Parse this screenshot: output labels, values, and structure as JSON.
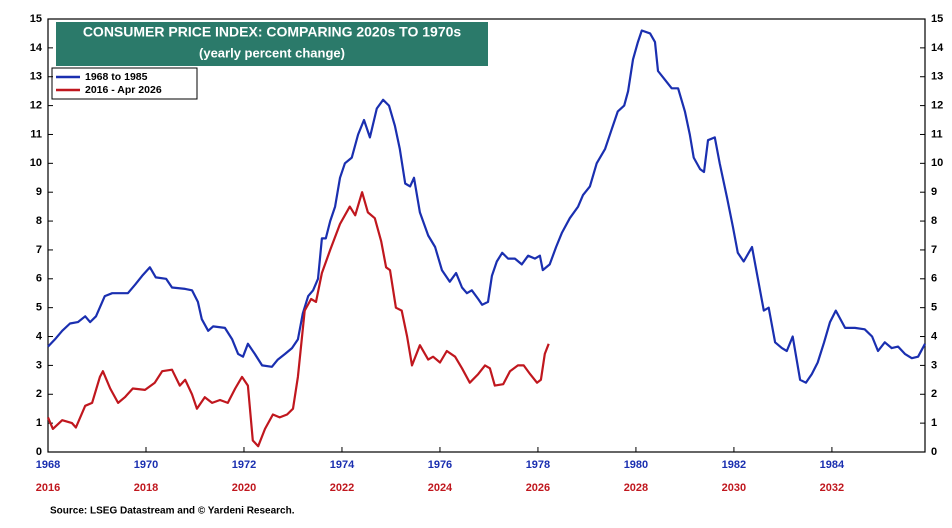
{
  "chart_data": {
    "type": "line",
    "title": "CONSUMER PRICE INDEX: COMPARING 2020s TO 1970s",
    "subtitle": "(yearly percent change)",
    "source": "Source: LSEG Datastream and © Yardeni Research.",
    "title_box_color": "#2b7a6a",
    "xlim": [
      1968,
      1985.9
    ],
    "xticks": [
      1968,
      1970,
      1972,
      1974,
      1976,
      1978,
      1980,
      1982,
      1984
    ],
    "xtick_color": "#1a2fb0",
    "x2lim": [
      2016,
      2033.9
    ],
    "x2ticks": [
      2016,
      2018,
      2020,
      2022,
      2024,
      2026,
      2028,
      2030,
      2032
    ],
    "x2tick_color": "#c0171e",
    "ylim": [
      0,
      15
    ],
    "yticks": [
      0,
      1,
      2,
      3,
      4,
      5,
      6,
      7,
      8,
      9,
      10,
      11,
      12,
      13,
      14,
      15
    ],
    "grid": false,
    "legend": "upper left",
    "series": [
      {
        "name": "1968 to 1985",
        "color": "#1a2fb0",
        "axis": "x",
        "x": [
          1968.0,
          1968.14,
          1968.29,
          1968.45,
          1968.61,
          1968.76,
          1968.86,
          1968.98,
          1969.16,
          1969.31,
          1969.47,
          1969.63,
          1969.78,
          1969.92,
          1970.08,
          1970.2,
          1970.41,
          1970.53,
          1970.8,
          1970.94,
          1971.06,
          1971.14,
          1971.27,
          1971.37,
          1971.61,
          1971.76,
          1971.88,
          1971.98,
          1972.08,
          1972.22,
          1972.37,
          1972.57,
          1972.69,
          1972.84,
          1972.98,
          1973.1,
          1973.2,
          1973.31,
          1973.41,
          1973.51,
          1973.59,
          1973.67,
          1973.76,
          1973.86,
          1973.96,
          1974.06,
          1974.2,
          1974.33,
          1974.45,
          1974.57,
          1974.71,
          1974.84,
          1974.96,
          1975.08,
          1975.18,
          1975.29,
          1975.39,
          1975.47,
          1975.59,
          1975.76,
          1975.9,
          1976.04,
          1976.2,
          1976.33,
          1976.45,
          1976.55,
          1976.65,
          1976.78,
          1976.86,
          1976.98,
          1977.06,
          1977.16,
          1977.27,
          1977.39,
          1977.53,
          1977.67,
          1977.8,
          1977.94,
          1978.04,
          1978.1,
          1978.24,
          1978.37,
          1978.49,
          1978.65,
          1978.82,
          1978.92,
          1979.06,
          1979.2,
          1979.37,
          1979.51,
          1979.63,
          1979.76,
          1979.84,
          1979.94,
          1980.04,
          1980.12,
          1980.29,
          1980.39,
          1980.45,
          1980.59,
          1980.73,
          1980.86,
          1981.0,
          1981.1,
          1981.18,
          1981.31,
          1981.39,
          1981.47,
          1981.61,
          1981.71,
          1981.86,
          1981.98,
          1982.08,
          1982.2,
          1982.37,
          1982.49,
          1982.61,
          1982.71,
          1982.84,
          1982.98,
          1983.08,
          1983.2,
          1983.35,
          1983.47,
          1983.59,
          1983.71,
          1983.84,
          1983.96,
          1984.08,
          1984.27,
          1984.47,
          1984.67,
          1984.82,
          1984.94,
          1985.08,
          1985.22,
          1985.35,
          1985.49,
          1985.63,
          1985.76,
          1985.9
        ],
        "values": [
          3.65,
          3.9,
          4.2,
          4.45,
          4.5,
          4.7,
          4.5,
          4.7,
          5.4,
          5.5,
          5.5,
          5.5,
          5.8,
          6.1,
          6.4,
          6.05,
          6.0,
          5.7,
          5.65,
          5.6,
          5.2,
          4.6,
          4.2,
          4.35,
          4.3,
          3.9,
          3.4,
          3.3,
          3.75,
          3.4,
          3.0,
          2.95,
          3.2,
          3.4,
          3.6,
          3.9,
          4.8,
          5.4,
          5.6,
          6.0,
          7.4,
          7.4,
          8.0,
          8.5,
          9.5,
          10.0,
          10.2,
          11.0,
          11.5,
          10.9,
          11.9,
          12.2,
          12.0,
          11.3,
          10.5,
          9.3,
          9.2,
          9.5,
          8.3,
          7.5,
          7.1,
          6.3,
          5.9,
          6.2,
          5.7,
          5.5,
          5.6,
          5.3,
          5.1,
          5.2,
          6.1,
          6.6,
          6.9,
          6.7,
          6.7,
          6.5,
          6.8,
          6.7,
          6.8,
          6.3,
          6.5,
          7.1,
          7.6,
          8.1,
          8.5,
          8.9,
          9.2,
          10.0,
          10.5,
          11.2,
          11.8,
          12.0,
          12.5,
          13.6,
          14.2,
          14.6,
          14.5,
          14.2,
          13.2,
          12.9,
          12.6,
          12.6,
          11.8,
          11.0,
          10.2,
          9.8,
          9.7,
          10.8,
          10.9,
          10.0,
          8.8,
          7.8,
          6.9,
          6.6,
          7.1,
          6.0,
          4.9,
          5.0,
          3.8,
          3.6,
          3.5,
          4.0,
          2.5,
          2.4,
          2.7,
          3.1,
          3.8,
          4.5,
          4.9,
          4.3,
          4.3,
          4.25,
          4.0,
          3.5,
          3.8,
          3.6,
          3.65,
          3.4,
          3.25,
          3.3,
          3.75
        ]
      },
      {
        "name": "2016 - Apr 2026",
        "color": "#c0171e",
        "axis": "x2",
        "x": [
          2016.0,
          2016.1,
          2016.29,
          2016.49,
          2016.57,
          2016.76,
          2016.9,
          2017.06,
          2017.12,
          2017.27,
          2017.43,
          2017.57,
          2017.73,
          2017.98,
          2018.18,
          2018.33,
          2018.53,
          2018.69,
          2018.8,
          2018.94,
          2019.04,
          2019.2,
          2019.35,
          2019.51,
          2019.67,
          2019.82,
          2019.96,
          2020.08,
          2020.18,
          2020.29,
          2020.43,
          2020.59,
          2020.73,
          2020.88,
          2021.0,
          2021.1,
          2021.24,
          2021.37,
          2021.47,
          2021.59,
          2021.76,
          2021.96,
          2022.16,
          2022.27,
          2022.41,
          2022.53,
          2022.67,
          2022.8,
          2022.9,
          2022.98,
          2023.1,
          2023.22,
          2023.33,
          2023.43,
          2023.59,
          2023.76,
          2023.86,
          2024.0,
          2024.14,
          2024.31,
          2024.45,
          2024.61,
          2024.78,
          2024.92,
          2025.02,
          2025.12,
          2025.29,
          2025.43,
          2025.59,
          2025.71,
          2025.84,
          2025.98,
          2026.06,
          2026.14,
          2026.22
        ],
        "values": [
          1.2,
          0.8,
          1.1,
          1.0,
          0.85,
          1.6,
          1.7,
          2.6,
          2.8,
          2.2,
          1.7,
          1.9,
          2.2,
          2.15,
          2.4,
          2.8,
          2.85,
          2.3,
          2.5,
          2.0,
          1.5,
          1.9,
          1.7,
          1.8,
          1.7,
          2.2,
          2.6,
          2.3,
          0.4,
          0.2,
          0.8,
          1.3,
          1.2,
          1.3,
          1.5,
          2.6,
          4.9,
          5.3,
          5.2,
          6.2,
          7.0,
          7.9,
          8.5,
          8.2,
          9.0,
          8.3,
          8.1,
          7.3,
          6.4,
          6.3,
          5.0,
          4.9,
          4.0,
          3.0,
          3.7,
          3.2,
          3.3,
          3.1,
          3.5,
          3.3,
          2.9,
          2.4,
          2.7,
          3.0,
          2.9,
          2.3,
          2.35,
          2.8,
          3.0,
          3.0,
          2.7,
          2.4,
          2.5,
          3.4,
          3.75
        ]
      }
    ]
  }
}
